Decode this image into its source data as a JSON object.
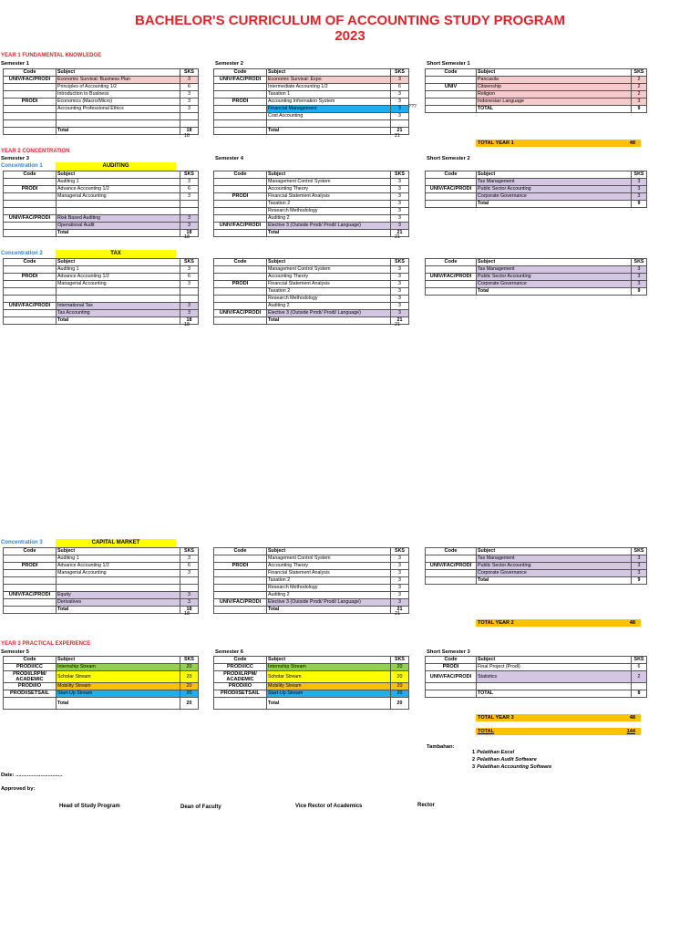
{
  "title_line1": "BACHELOR'S CURRICULUM OF ACCOUNTING STUDY PROGRAM",
  "title_line2": "2023",
  "year1": {
    "heading": "YEAR 1 FUNDAMENTAL KNOWLEDGE",
    "sem1": {
      "label": "Semester 1",
      "head": [
        "Code",
        "Subject",
        "SKS"
      ],
      "rows": [
        {
          "code": "UNIV/FAC/PRODI",
          "subject": "Economic Survival: Business Plan",
          "sks": "3",
          "color": "pink"
        },
        {
          "code": "",
          "subject": "Principles of Accounting 1/2",
          "sks": "6",
          "color": ""
        },
        {
          "code": "",
          "subject": "Introduction to Business",
          "sks": "3",
          "color": ""
        },
        {
          "code": "PRODI",
          "subject": "Economics (Macro/Micro)",
          "sks": "3",
          "color": ""
        },
        {
          "code": "",
          "subject": "Accounting Professional Ethics",
          "sks": "3",
          "color": ""
        },
        {
          "code": "",
          "subject": "",
          "sks": "",
          "color": ""
        },
        {
          "code": "",
          "subject": "",
          "sks": "",
          "color": ""
        },
        {
          "code": "",
          "subject": "Total",
          "sks": "18",
          "color": "",
          "total": true
        }
      ],
      "below": "18"
    },
    "sem2": {
      "label": "Semester 2",
      "head": [
        "Code",
        "Subject",
        "SKS"
      ],
      "rows": [
        {
          "code": "UNIV/FAC/PRODI",
          "subject": "Economic Survival: Expo",
          "sks": "3",
          "color": "pink"
        },
        {
          "code": "",
          "subject": "Intermediate Accounting 1/2",
          "sks": "6",
          "color": ""
        },
        {
          "code": "",
          "subject": "Taxation 1",
          "sks": "3",
          "color": ""
        },
        {
          "code": "PRODI",
          "subject": "Accounting Information System",
          "sks": "3",
          "color": ""
        },
        {
          "code": "",
          "subject": "Financial Management",
          "sks": "3",
          "color": "blue"
        },
        {
          "code": "",
          "subject": "Cost Accounting",
          "sks": "3",
          "color": ""
        },
        {
          "code": "",
          "subject": "",
          "sks": "",
          "color": ""
        },
        {
          "code": "",
          "subject": "Total",
          "sks": "21",
          "color": "",
          "total": true
        }
      ],
      "below": "21",
      "mark": "???"
    },
    "short1": {
      "label": "Short Semester 1",
      "head": [
        "Code",
        "Subject",
        "SKS"
      ],
      "rows": [
        {
          "code": "",
          "subject": "Pancasila",
          "sks": "2",
          "color": "pink"
        },
        {
          "code": "UNIV",
          "subject": "Citizenship",
          "sks": "2",
          "color": "pink"
        },
        {
          "code": "",
          "subject": "Religion",
          "sks": "2",
          "color": "pink"
        },
        {
          "code": "",
          "subject": "Indonesian Language",
          "sks": "3",
          "color": "pink"
        },
        {
          "code": "",
          "subject": "TOTAL",
          "sks": "9",
          "color": "",
          "total": true
        }
      ]
    },
    "total_label": "TOTAL YEAR 1",
    "total_value": "48"
  },
  "year2": {
    "heading": "YEAR 2 CONCENTRATION",
    "sem3_label": "Semester 3",
    "sem4_label": "Semester 4",
    "short2_label": "Short Semester 2",
    "concentrations": [
      {
        "label": "Concentration 1",
        "name": "AUDITING",
        "sem3": [
          {
            "code": "Code",
            "subject": "Subject",
            "sks": "SKS",
            "hdr": true
          },
          {
            "code": "",
            "subject": "Auditing 1",
            "sks": "3",
            "color": ""
          },
          {
            "code": "PRODI",
            "subject": "Advance Accounting 1/2",
            "sks": "6",
            "color": ""
          },
          {
            "code": "",
            "subject": "Managerial Accounting",
            "sks": "3",
            "color": ""
          },
          {
            "code": "",
            "subject": "",
            "sks": "",
            "color": ""
          },
          {
            "code": "",
            "subject": "",
            "sks": "",
            "color": ""
          },
          {
            "code": "UNIV/FAC/PRODI",
            "subject": "Risk Based Auditing",
            "sks": "3",
            "color": "purple"
          },
          {
            "code": "",
            "subject": "Operational Audit",
            "sks": "3",
            "color": "purple"
          },
          {
            "code": "",
            "subject": "Total",
            "sks": "18",
            "color": "",
            "total": true
          }
        ],
        "sem3_below": "18",
        "sem4": [
          {
            "code": "Code",
            "subject": "Subject",
            "sks": "SKS",
            "hdr": true
          },
          {
            "code": "",
            "subject": "Management Control System",
            "sks": "3",
            "color": ""
          },
          {
            "code": "",
            "subject": "Accounting Theory",
            "sks": "3",
            "color": ""
          },
          {
            "code": "PRODI",
            "subject": "Financial Statement Analysis",
            "sks": "3",
            "color": ""
          },
          {
            "code": "",
            "subject": "Taxation 2",
            "sks": "3",
            "color": ""
          },
          {
            "code": "",
            "subject": "Research Methodology",
            "sks": "3",
            "color": ""
          },
          {
            "code": "",
            "subject": "Auditing 2",
            "sks": "3",
            "color": ""
          },
          {
            "code": "UNIV/FAC/PRODI",
            "subject": "Elective 3 (Outside Prodi/ Prodi/ Language)",
            "sks": "3",
            "color": "purple"
          },
          {
            "code": "",
            "subject": "Total",
            "sks": "21",
            "color": "",
            "total": true
          }
        ],
        "sem4_below": "21",
        "short": [
          {
            "code": "Code",
            "subject": "Subject",
            "sks": "SKS",
            "hdr": true
          },
          {
            "code": "",
            "subject": "Tax Management",
            "sks": "3",
            "color": "purple"
          },
          {
            "code": "UNIV/FAC/PRODI",
            "subject": "Public Sector Accounting",
            "sks": "3",
            "color": "purple"
          },
          {
            "code": "",
            "subject": "Corporate Governance",
            "sks": "3",
            "color": "purple"
          },
          {
            "code": "",
            "subject": "Total",
            "sks": "9",
            "color": "",
            "total": true
          }
        ]
      },
      {
        "label": "Concentration 2",
        "name": "TAX",
        "sem3": [
          {
            "code": "Code",
            "subject": "Subject",
            "sks": "SKS",
            "hdr": true
          },
          {
            "code": "",
            "subject": "Auditing 1",
            "sks": "3",
            "color": ""
          },
          {
            "code": "PRODI",
            "subject": "Advance Accounting 1/2",
            "sks": "6",
            "color": ""
          },
          {
            "code": "",
            "subject": "Managerial Accounting",
            "sks": "3",
            "color": ""
          },
          {
            "code": "",
            "subject": "",
            "sks": "",
            "color": ""
          },
          {
            "code": "",
            "subject": "",
            "sks": "",
            "color": ""
          },
          {
            "code": "UNIV/FAC/PRODI",
            "subject": "International Tax",
            "sks": "3",
            "color": "purple"
          },
          {
            "code": "",
            "subject": "Tax Accounting",
            "sks": "3",
            "color": "purple"
          },
          {
            "code": "",
            "subject": "Total",
            "sks": "18",
            "color": "",
            "total": true
          }
        ],
        "sem3_below": "18",
        "sem4": [
          {
            "code": "Code",
            "subject": "Subject",
            "sks": "SKS",
            "hdr": true
          },
          {
            "code": "",
            "subject": "Management Control System",
            "sks": "3",
            "color": ""
          },
          {
            "code": "",
            "subject": "Accounting Theory",
            "sks": "3",
            "color": ""
          },
          {
            "code": "PRODI",
            "subject": "Financial Statement Analysis",
            "sks": "3",
            "color": ""
          },
          {
            "code": "",
            "subject": "Taxation 2",
            "sks": "3",
            "color": ""
          },
          {
            "code": "",
            "subject": "Research Methodology",
            "sks": "3",
            "color": ""
          },
          {
            "code": "",
            "subject": "Auditing 2",
            "sks": "3",
            "color": ""
          },
          {
            "code": "UNIV/FAC/PRODI",
            "subject": "Elective 3 (Outside Prodi/ Prodi/ Language)",
            "sks": "3",
            "color": "purple"
          },
          {
            "code": "",
            "subject": "Total",
            "sks": "21",
            "color": "",
            "total": true
          }
        ],
        "sem4_below": "21",
        "short": [
          {
            "code": "Code",
            "subject": "Subject",
            "sks": "SKS",
            "hdr": true
          },
          {
            "code": "",
            "subject": "Tax Management",
            "sks": "3",
            "color": "purple"
          },
          {
            "code": "UNIV/FAC/PRODI",
            "subject": "Public Sector Accounting",
            "sks": "3",
            "color": "purple"
          },
          {
            "code": "",
            "subject": "Corporate Governance",
            "sks": "3",
            "color": "purple"
          },
          {
            "code": "",
            "subject": "Total",
            "sks": "9",
            "color": "",
            "total": true
          }
        ]
      },
      {
        "label": "Concentration 3",
        "name": "CAPITAL MARKET",
        "sem3": [
          {
            "code": "Code",
            "subject": "Subject",
            "sks": "SKS",
            "hdr": true
          },
          {
            "code": "",
            "subject": "Auditing 1",
            "sks": "3",
            "color": ""
          },
          {
            "code": "PRODI",
            "subject": "Advance Accounting 1/2",
            "sks": "6",
            "color": ""
          },
          {
            "code": "",
            "subject": "Managerial Accounting",
            "sks": "3",
            "color": ""
          },
          {
            "code": "",
            "subject": "",
            "sks": "",
            "color": ""
          },
          {
            "code": "",
            "subject": "",
            "sks": "",
            "color": ""
          },
          {
            "code": "UNIV/FAC/PRODI",
            "subject": "Equity",
            "sks": "3",
            "color": "purple"
          },
          {
            "code": "",
            "subject": "Derivatives",
            "sks": "3",
            "color": "purple"
          },
          {
            "code": "",
            "subject": "Total",
            "sks": "18",
            "color": "",
            "total": true
          }
        ],
        "sem3_below": "18",
        "sem4": [
          {
            "code": "Code",
            "subject": "Subject",
            "sks": "SKS",
            "hdr": true
          },
          {
            "code": "",
            "subject": "Management Control System",
            "sks": "3",
            "color": ""
          },
          {
            "code": "PRODI",
            "subject": "Accounting Theory",
            "sks": "3",
            "color": ""
          },
          {
            "code": "",
            "subject": "Financial Statement Analysis",
            "sks": "3",
            "color": ""
          },
          {
            "code": "",
            "subject": "Taxation 2",
            "sks": "3",
            "color": ""
          },
          {
            "code": "",
            "subject": "Research Methodology",
            "sks": "3",
            "color": ""
          },
          {
            "code": "",
            "subject": "Auditing 2",
            "sks": "3",
            "color": ""
          },
          {
            "code": "UNIV/FAC/PRODI",
            "subject": "Elective 3 (Outside Prodi/ Prodi/ Language)",
            "sks": "3",
            "color": "purple"
          },
          {
            "code": "",
            "subject": "Total",
            "sks": "21",
            "color": "",
            "total": true
          }
        ],
        "sem4_below": "21",
        "short": [
          {
            "code": "Code",
            "subject": "Subject",
            "sks": "SKS",
            "hdr": true
          },
          {
            "code": "",
            "subject": "Tax Management",
            "sks": "3",
            "color": "purple"
          },
          {
            "code": "UNIV/FAC/PRODI",
            "subject": "Public Sector Accounting",
            "sks": "3",
            "color": "purple"
          },
          {
            "code": "",
            "subject": "Corporate Governance",
            "sks": "3",
            "color": "purple"
          },
          {
            "code": "",
            "subject": "Total",
            "sks": "9",
            "color": "",
            "total": true
          }
        ]
      }
    ],
    "total_label": "TOTAL YEAR 2",
    "total_value": "48"
  },
  "year3": {
    "heading": "YEAR 3 PRACTICAL EXPERIENCE",
    "sem5": {
      "label": "Semester 5",
      "rows": [
        {
          "code": "Code",
          "subject": "Subject",
          "sks": "SKS",
          "hdr": true
        },
        {
          "code": "PRODI/ICC",
          "subject": "Internship Stream",
          "sks": "20",
          "color": "green"
        },
        {
          "code": "PRODI/LRPM/ ACADEMIC",
          "subject": "Scholar Stream",
          "sks": "20",
          "color": "yel",
          "tall": true
        },
        {
          "code": "PRODI/IO",
          "subject": "Mobility Stream",
          "sks": "20",
          "color": "orange"
        },
        {
          "code": "PRODI/SETSAIL",
          "subject": "Start-Up Stream",
          "sks": "20",
          "color": "blue"
        },
        {
          "code": "",
          "subject": "Total",
          "sks": "20",
          "color": "",
          "total": true,
          "tall": true
        }
      ]
    },
    "sem6": {
      "label": "Semester 6",
      "rows": [
        {
          "code": "Code",
          "subject": "Subject",
          "sks": "SKS",
          "hdr": true
        },
        {
          "code": "PRODI/ICC",
          "subject": "Internship Stream",
          "sks": "20",
          "color": "green"
        },
        {
          "code": "PRODI/LRPM/ ACADEMIC",
          "subject": "Scholar Stream",
          "sks": "20",
          "color": "yel",
          "tall": true
        },
        {
          "code": "PRODI/IO",
          "subject": "Mobility Stream",
          "sks": "20",
          "color": "orange"
        },
        {
          "code": "PRODI/SETSAIL",
          "subject": "Start-Up Stream",
          "sks": "20",
          "color": "blue"
        },
        {
          "code": "",
          "subject": "Total",
          "sks": "20",
          "color": "",
          "total": true,
          "tall": true
        }
      ]
    },
    "short3": {
      "label": "Short Semester 3",
      "rows": [
        {
          "code": "Code",
          "subject": "Subject",
          "sks": "SKS",
          "hdr": true
        },
        {
          "code": "PRODI",
          "subject": "Final Project (Prodi)",
          "sks": "6",
          "color": ""
        },
        {
          "code": "UNIV/FAC/PRODI",
          "subject": "Statistics",
          "sks": "2",
          "color": "purple",
          "tall": true
        },
        {
          "code": "",
          "subject": "",
          "sks": "",
          "color": ""
        },
        {
          "code": "",
          "subject": "TOTAL",
          "sks": "8",
          "color": "",
          "total": true
        }
      ]
    },
    "total_label": "TOTAL YEAR 3",
    "total_value": "48",
    "grand_label": "TOTAL",
    "grand_value": "144"
  },
  "notes": {
    "label": "Tambahan:",
    "items": [
      {
        "n": "1",
        "text": "Pelatihan Excel"
      },
      {
        "n": "2",
        "text": "Pelatihan Audit Software"
      },
      {
        "n": "3",
        "text": "Pelatihan Accounting Software"
      }
    ]
  },
  "footer": {
    "date": "Date: ................................",
    "approved": "Approved by:",
    "signers": [
      "Head of Study Program",
      "Dean of Faculty",
      "Vice Rector of Academics",
      "Rector"
    ]
  }
}
